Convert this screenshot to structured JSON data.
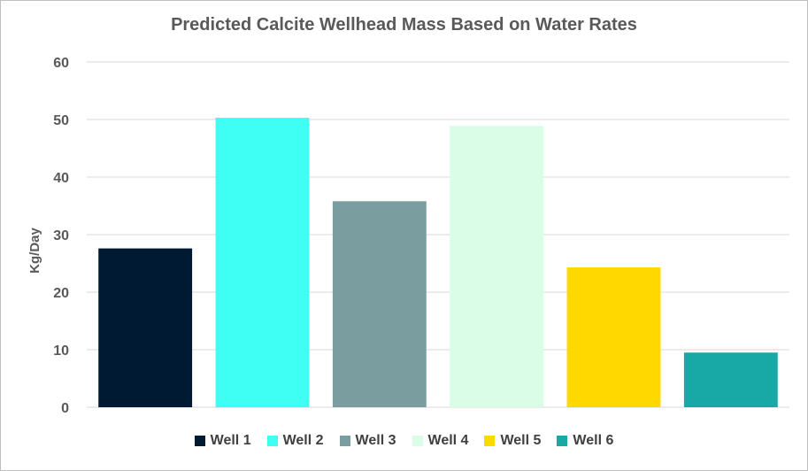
{
  "chart_data": {
    "type": "bar",
    "title": "Predicted Calcite Wellhead Mass Based on Water Rates",
    "xlabel": "",
    "ylabel": "Kg/Day",
    "ylim": [
      0,
      60
    ],
    "yticks": [
      0,
      10,
      20,
      30,
      40,
      50,
      60
    ],
    "grid": true,
    "legend_position": "bottom",
    "categories": [
      "Well 1",
      "Well 2",
      "Well 3",
      "Well 4",
      "Well 5",
      "Well 6"
    ],
    "values": [
      27.6,
      50.3,
      35.8,
      48.9,
      24.3,
      9.5
    ],
    "colors": [
      "#001a33",
      "#3ffef4",
      "#7a9e9f",
      "#d9fde6",
      "#ffd800",
      "#18a8a6"
    ]
  }
}
